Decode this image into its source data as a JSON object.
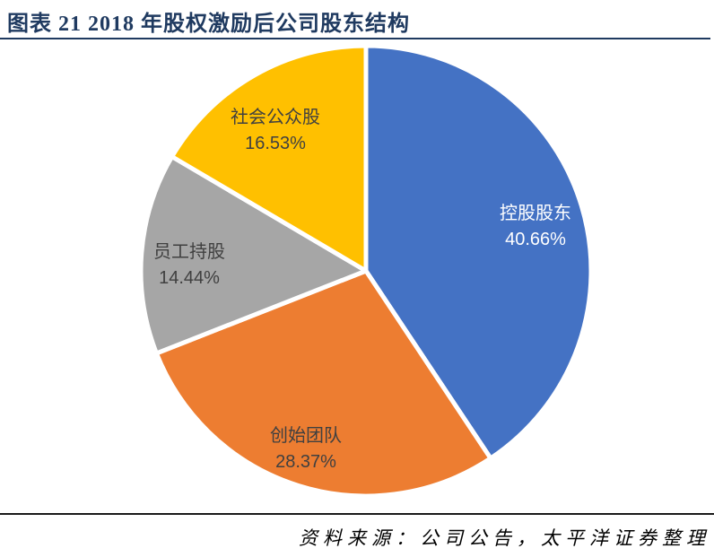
{
  "header": {
    "title": "图表 21 2018 年股权激励后公司股东结构"
  },
  "chart_data": {
    "type": "pie",
    "title": "2018 年股权激励后公司股东结构",
    "units": "percent",
    "total": 100.0,
    "start_angle_deg": 0,
    "direction": "clockwise",
    "labels_position": "inside",
    "legend": "none",
    "separator_color": "#FFFFFF",
    "slices": [
      {
        "label": "控股股东",
        "value": 40.66,
        "pct_label": "40.66%",
        "color": "#4472C4",
        "text_color": "#FFFFFF"
      },
      {
        "label": "创始团队",
        "value": 28.37,
        "pct_label": "28.37%",
        "color": "#ED7D31",
        "text_color": "#404040"
      },
      {
        "label": "员工持股",
        "value": 14.44,
        "pct_label": "14.44%",
        "color": "#A6A6A6",
        "text_color": "#404040"
      },
      {
        "label": "社会公众股",
        "value": 16.53,
        "pct_label": "16.53%",
        "color": "#FFC000",
        "text_color": "#404040"
      }
    ]
  },
  "footer": {
    "source": "资料来源：公司公告，太平洋证券整理"
  },
  "colors": {
    "title_text": "#1F3A60",
    "title_rule": "#1F3A60",
    "footer_rule": "#1A1A1A",
    "background": "#FFFFFF"
  }
}
